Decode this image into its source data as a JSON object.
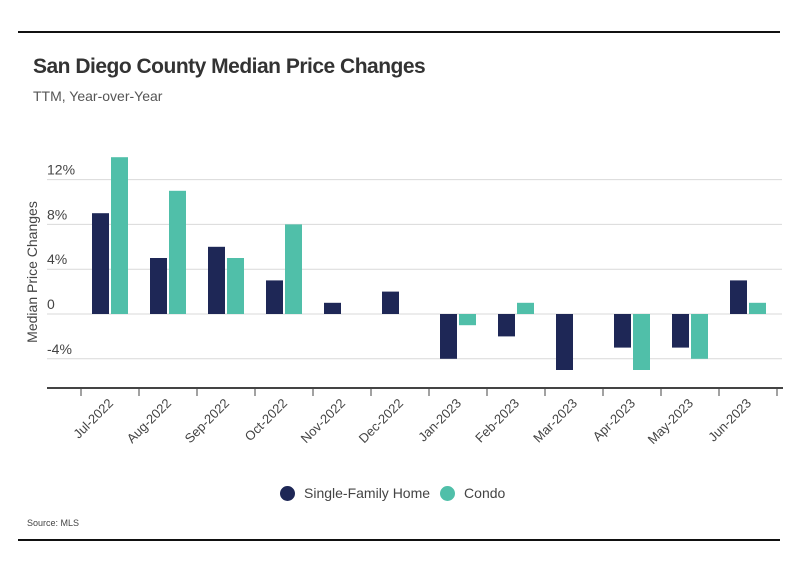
{
  "header": {
    "title": "San Diego County Median Price Changes",
    "subtitle": "TTM, Year-over-Year"
  },
  "footer": {
    "source": "Source: MLS"
  },
  "colors": {
    "single_family": "#1e2756",
    "condo": "#50bfa9"
  },
  "chart_data": {
    "type": "bar",
    "title": "San Diego County Median Price Changes",
    "subtitle": "TTM, Year-over-Year",
    "xlabel": "",
    "ylabel": "Median Price Changes",
    "ylim": [
      -6,
      14
    ],
    "yticks": [
      -4,
      0,
      4,
      8,
      12
    ],
    "ytick_labels": [
      "-4%",
      "0",
      "4%",
      "8%",
      "12%"
    ],
    "grid": true,
    "legend_position": "bottom-center",
    "categories": [
      "Jul-2022",
      "Aug-2022",
      "Sep-2022",
      "Oct-2022",
      "Nov-2022",
      "Dec-2022",
      "Jan-2023",
      "Feb-2023",
      "Mar-2023",
      "Apr-2023",
      "May-2023",
      "Jun-2023"
    ],
    "series": [
      {
        "name": "Single-Family Home",
        "color": "#1e2756",
        "values": [
          9,
          5,
          6,
          3,
          1,
          2,
          -4,
          -2,
          -5,
          -3,
          -3,
          3
        ]
      },
      {
        "name": "Condo",
        "color": "#50bfa9",
        "values": [
          14,
          11,
          5,
          8,
          0,
          0,
          -1,
          1,
          0,
          -5,
          -4,
          1
        ]
      }
    ]
  }
}
